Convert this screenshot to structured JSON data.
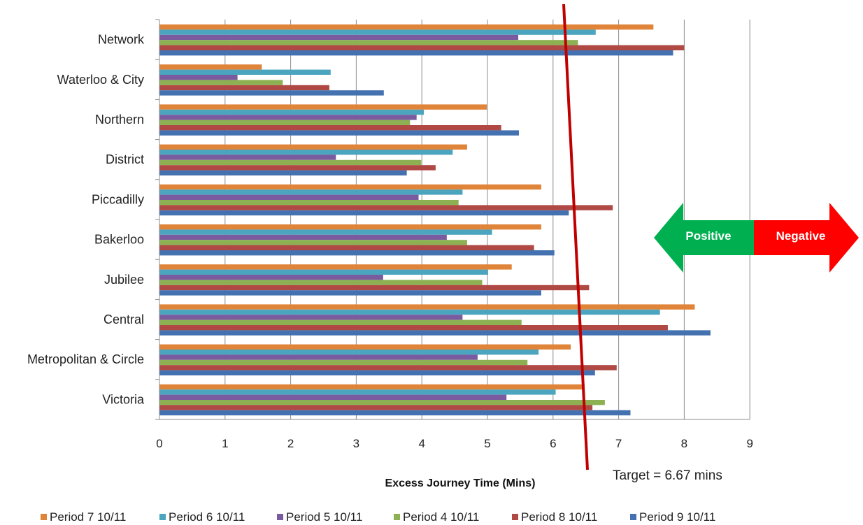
{
  "chart_data": {
    "type": "bar",
    "orientation": "horizontal",
    "xlabel": "Excess Journey Time (Mins)",
    "xlim": [
      0,
      9
    ],
    "xticks": [
      0,
      1,
      2,
      3,
      4,
      5,
      6,
      7,
      8,
      9
    ],
    "grid": "vertical",
    "legend_position": "bottom",
    "categories": [
      "Network",
      "Waterloo & City",
      "Northern",
      "District",
      "Piccadilly",
      "Bakerloo",
      "Jubilee",
      "Central",
      "Metropolitan & Circle",
      "Victoria"
    ],
    "series": [
      {
        "name": "Period 7 10/11",
        "color": "#E0843A",
        "values": [
          7.53,
          1.56,
          4.99,
          4.69,
          5.82,
          5.82,
          5.37,
          8.16,
          6.27,
          6.48
        ]
      },
      {
        "name": "Period 6 10/11",
        "color": "#4BA5BF",
        "values": [
          6.65,
          2.61,
          4.03,
          4.47,
          4.62,
          5.07,
          5.01,
          7.63,
          5.78,
          6.04
        ]
      },
      {
        "name": "Period 5 10/11",
        "color": "#7A5BA0",
        "values": [
          5.47,
          1.19,
          3.92,
          2.69,
          3.95,
          4.38,
          3.41,
          4.62,
          4.85,
          5.29
        ]
      },
      {
        "name": "Period 4 10/11",
        "color": "#8DB152",
        "values": [
          6.38,
          1.88,
          3.82,
          3.99,
          4.56,
          4.69,
          4.92,
          5.52,
          5.61,
          6.79
        ]
      },
      {
        "name": "Period 8 10/11",
        "color": "#B04844",
        "values": [
          8.0,
          2.59,
          5.21,
          4.21,
          6.91,
          5.71,
          6.55,
          7.75,
          6.97,
          6.6
        ]
      },
      {
        "name": "Period 9 10/11",
        "color": "#4472B0",
        "values": [
          7.83,
          3.42,
          5.48,
          3.77,
          6.24,
          6.02,
          5.82,
          8.4,
          6.64,
          7.18
        ]
      }
    ],
    "target": {
      "value": 6.67,
      "label": "Target = 6.67 mins",
      "color": "#C00000"
    },
    "annotations": {
      "positive": {
        "label": "Positive",
        "color": "#00B050"
      },
      "negative": {
        "label": "Negative",
        "color": "#FF0000"
      }
    }
  }
}
